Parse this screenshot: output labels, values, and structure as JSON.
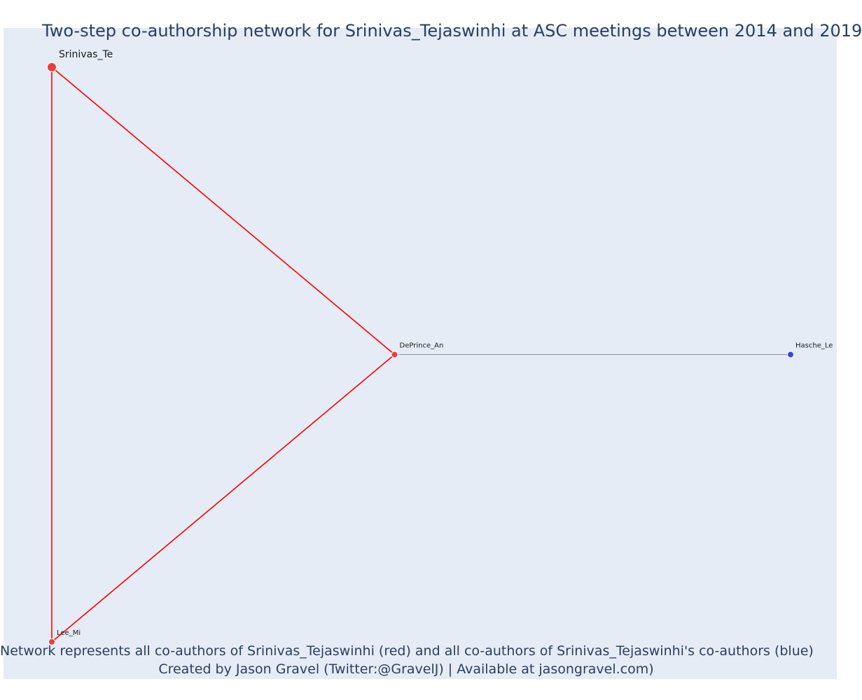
{
  "chart_data": {
    "type": "network",
    "title": "Two-step co-authorship network for Srinivas_Tejaswinhi at ASC meetings between 2014 and 2019",
    "caption_lines": [
      "Network represents all co-authors of Srinivas_Tejaswinhi (red) and all co-authors of Srinivas_Tejaswinhi's co-authors (blue)",
      "Created by Jason Gravel (Twitter:@GravelJ) | Available at jasongravel.com)"
    ],
    "xlim": [
      0,
      1
    ],
    "ylim": [
      0,
      1
    ],
    "nodes": [
      {
        "id": "srinivas",
        "label": "Srinivas_Te",
        "x": 0.0,
        "y": 1.0,
        "group": "focal",
        "size": "large"
      },
      {
        "id": "deprince",
        "label": "DePrince_An",
        "x": 0.464,
        "y": 0.5,
        "group": "coauthor",
        "size": "small"
      },
      {
        "id": "lee",
        "label": "Lee_Mi",
        "x": 0.0,
        "y": 0.0,
        "group": "coauthor",
        "size": "small"
      },
      {
        "id": "hasche",
        "label": "Hasche_Le",
        "x": 1.0,
        "y": 0.5,
        "group": "second_degree",
        "size": "small"
      }
    ],
    "edges": [
      {
        "source": "srinivas",
        "target": "deprince",
        "color": "#ff0000"
      },
      {
        "source": "srinivas",
        "target": "lee",
        "color": "#ff0000"
      },
      {
        "source": "deprince",
        "target": "lee",
        "color": "#ff0000"
      },
      {
        "source": "deprince",
        "target": "hasche",
        "color": "#8a8f9e"
      }
    ],
    "colors": {
      "focal": "#ef3b3b",
      "coauthor": "#ef3b3b",
      "second_degree": "#3f43e8",
      "plot_background": "#e5ecf6",
      "text": "#2a3f5f"
    },
    "grid": false,
    "legend": "none"
  }
}
